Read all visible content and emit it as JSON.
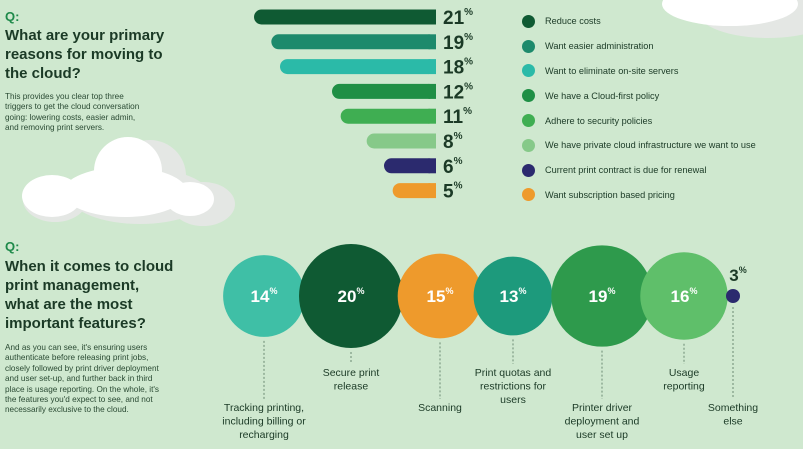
{
  "section1": {
    "q_mark": "Q:",
    "title_lines": [
      "What are your primary",
      "reasons for moving to",
      "the cloud?"
    ],
    "desc_lines": [
      "This provides you clear top three",
      "triggers to get the cloud conversation",
      "going: lowering costs, easier admin,",
      "and removing print servers."
    ]
  },
  "section2": {
    "q_mark": "Q:",
    "title_lines": [
      "When it comes to cloud",
      "print management,",
      "what are the most",
      "important features?"
    ],
    "desc_lines": [
      "And as you can see, it's ensuring users",
      "authenticate before releasing print jobs,",
      "closely followed by print driver deployment",
      "and user set-up, and further back in third",
      "place is usage reporting. On the whole, it's",
      "the features you'd expect to see, and not",
      "necessarily exclusive to the cloud."
    ]
  },
  "chart_data": [
    {
      "type": "bar",
      "orientation": "horizontal",
      "unit": "%",
      "categories": [
        "Reduce costs",
        "Want easier administration",
        "Want to eliminate on-site servers",
        "We have a Cloud-first policy",
        "Adhere to security policies",
        "We have private cloud infrastructure we want to use",
        "Current print contract is due for renewal",
        "Want subscription based pricing"
      ],
      "values": [
        21,
        19,
        18,
        12,
        11,
        8,
        6,
        5
      ],
      "colors": [
        "#0f5a33",
        "#1d8a6c",
        "#2bbaa8",
        "#1f8f45",
        "#3fae52",
        "#86c989",
        "#2b2a6e",
        "#ee9a2c"
      ]
    },
    {
      "type": "bubble",
      "unit": "%",
      "categories": [
        "Tracking printing, including billing or recharging",
        "Secure print release",
        "Scanning",
        "Print quotas and restrictions for users",
        "Printer driver deployment and user set up",
        "Usage reporting",
        "Something else"
      ],
      "label_lines": [
        [
          "Tracking printing,",
          "including billing or",
          "recharging"
        ],
        [
          "Secure print",
          "release"
        ],
        [
          "Scanning"
        ],
        [
          "Print quotas and",
          "restrictions for",
          "users"
        ],
        [
          "Printer driver",
          "deployment and",
          "user set up"
        ],
        [
          "Usage",
          "reporting"
        ],
        [
          "Something",
          "else"
        ]
      ],
      "values": [
        14,
        20,
        15,
        13,
        19,
        16,
        3
      ],
      "colors": [
        "#3fbfa6",
        "#0f5a33",
        "#ee9a2c",
        "#1d9a7c",
        "#2e9a4c",
        "#5fbf6a",
        "#2b2a6e"
      ]
    }
  ]
}
